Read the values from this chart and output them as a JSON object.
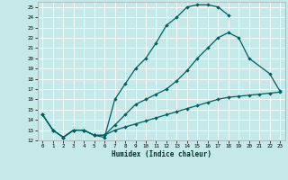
{
  "xlabel": "Humidex (Indice chaleur)",
  "bg_color": "#c5e8e8",
  "grid_color": "#b0d0d0",
  "line_color": "#006060",
  "xlim": [
    -0.5,
    23.5
  ],
  "ylim": [
    12,
    25.5
  ],
  "xticks": [
    0,
    1,
    2,
    3,
    4,
    5,
    6,
    7,
    8,
    9,
    10,
    11,
    12,
    13,
    14,
    15,
    16,
    17,
    18,
    19,
    20,
    21,
    22,
    23
  ],
  "yticks": [
    12,
    13,
    14,
    15,
    16,
    17,
    18,
    19,
    20,
    21,
    22,
    23,
    24,
    25
  ],
  "line1_x": [
    0,
    1,
    2,
    3,
    4,
    5,
    6,
    7,
    8,
    9,
    10,
    11,
    12,
    13,
    14,
    15,
    16,
    17,
    18
  ],
  "line1_y": [
    14.5,
    13.0,
    12.3,
    13.0,
    13.0,
    12.5,
    12.3,
    16.0,
    17.5,
    19.0,
    20.0,
    21.5,
    23.2,
    24.0,
    25.0,
    25.2,
    25.2,
    25.0,
    24.2
  ],
  "line2_x": [
    0,
    1,
    2,
    3,
    4,
    5,
    6,
    7,
    8,
    9,
    10,
    11,
    12,
    13,
    14,
    15,
    16,
    17,
    18,
    19,
    20,
    22,
    23
  ],
  "line2_y": [
    14.5,
    13.0,
    12.3,
    13.0,
    13.0,
    12.5,
    12.5,
    13.5,
    14.5,
    15.5,
    16.0,
    16.5,
    17.0,
    17.8,
    18.8,
    20.0,
    21.0,
    22.0,
    22.5,
    22.0,
    20.0,
    18.5,
    16.8
  ],
  "line3_x": [
    0,
    1,
    2,
    3,
    4,
    5,
    6,
    7,
    8,
    9,
    10,
    11,
    12,
    13,
    14,
    15,
    16,
    17,
    18,
    19,
    20,
    21,
    22,
    23
  ],
  "line3_y": [
    14.5,
    13.0,
    12.3,
    13.0,
    13.0,
    12.5,
    12.5,
    13.0,
    13.3,
    13.6,
    13.9,
    14.2,
    14.5,
    14.8,
    15.1,
    15.4,
    15.7,
    16.0,
    16.2,
    16.3,
    16.4,
    16.5,
    16.6,
    16.7
  ]
}
